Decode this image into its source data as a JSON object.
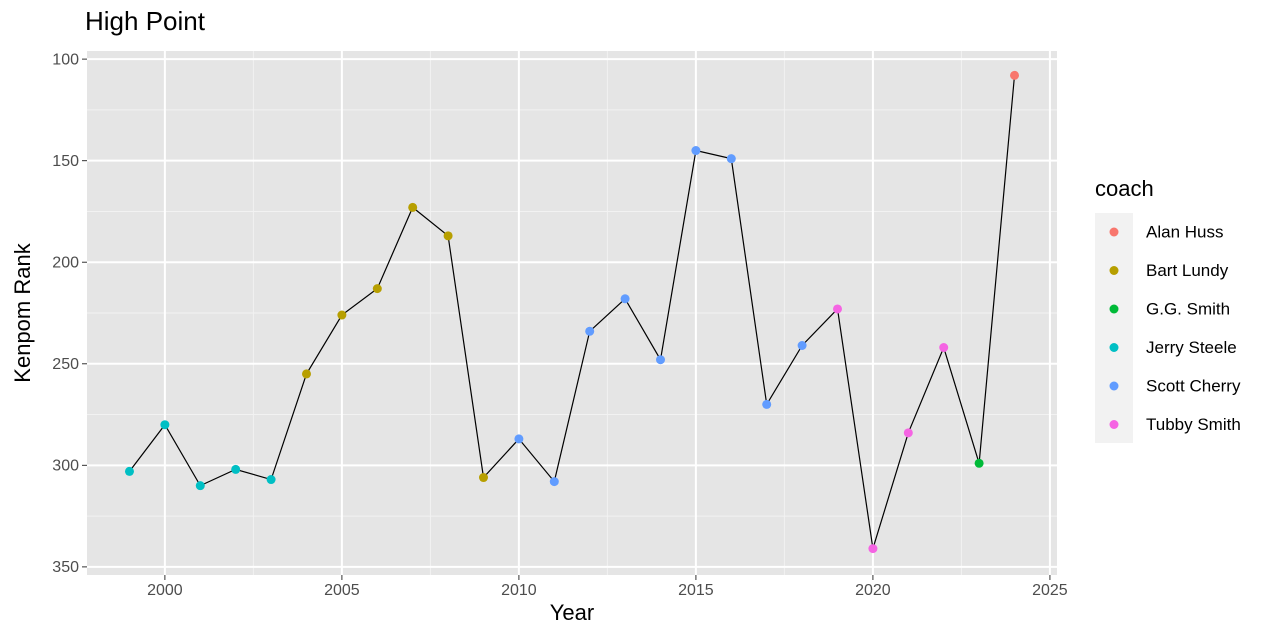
{
  "chart_data": {
    "type": "line",
    "title": "High Point",
    "x_label": "Year",
    "y_label": "Kenpom Rank",
    "x": [
      1999,
      2000,
      2001,
      2002,
      2003,
      2004,
      2005,
      2006,
      2007,
      2008,
      2009,
      2010,
      2011,
      2012,
      2013,
      2014,
      2015,
      2016,
      2017,
      2018,
      2019,
      2020,
      2021,
      2022,
      2023,
      2024
    ],
    "values": [
      303,
      280,
      310,
      302,
      307,
      255,
      226,
      213,
      173,
      187,
      306,
      287,
      308,
      234,
      218,
      248,
      145,
      149,
      270,
      241,
      223,
      341,
      284,
      242,
      299,
      108
    ],
    "coach": [
      "Jerry Steele",
      "Jerry Steele",
      "Jerry Steele",
      "Jerry Steele",
      "Jerry Steele",
      "Bart Lundy",
      "Bart Lundy",
      "Bart Lundy",
      "Bart Lundy",
      "Bart Lundy",
      "Bart Lundy",
      "Scott Cherry",
      "Scott Cherry",
      "Scott Cherry",
      "Scott Cherry",
      "Scott Cherry",
      "Scott Cherry",
      "Scott Cherry",
      "Scott Cherry",
      "Scott Cherry",
      "Tubby Smith",
      "Tubby Smith",
      "Tubby Smith",
      "Tubby Smith",
      "G.G. Smith",
      "Alan Huss"
    ],
    "line_color": "#000000",
    "legend": {
      "title": "coach",
      "items": [
        {
          "name": "Alan Huss",
          "color": "#f8766d"
        },
        {
          "name": "Bart Lundy",
          "color": "#b79f00"
        },
        {
          "name": "G.G. Smith",
          "color": "#00ba38"
        },
        {
          "name": "Jerry Steele",
          "color": "#00bfc4"
        },
        {
          "name": "Scott Cherry",
          "color": "#619cff"
        },
        {
          "name": "Tubby Smith",
          "color": "#f564e3"
        }
      ]
    },
    "xlim": [
      1997.8,
      2025.2
    ],
    "xticks": [
      2000,
      2005,
      2010,
      2015,
      2020,
      2025
    ],
    "ylim": [
      96,
      354
    ],
    "y_reversed": true,
    "yticks": [
      100,
      150,
      200,
      250,
      300,
      350
    ],
    "grid": true
  }
}
